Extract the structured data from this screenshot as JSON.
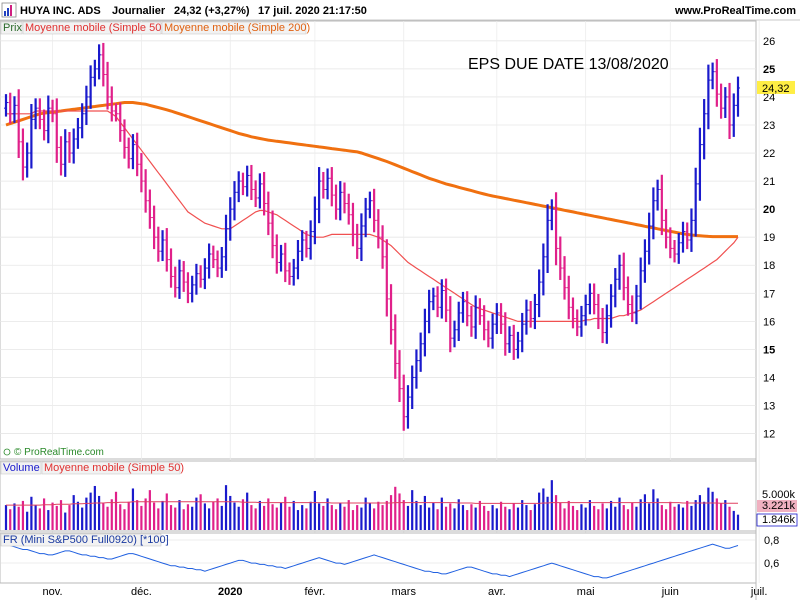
{
  "header": {
    "instrument": "HUYA INC. ADS",
    "period": "Journalier",
    "quote": "24,32 (+3,27%)",
    "datetime": "17 juil. 2020 21:17:50",
    "site": "www.ProRealTime.com"
  },
  "legend": {
    "price": "Prix",
    "ma50": "Moyenne mobile (Simple 50)",
    "ma200": "Moyenne mobile (Simple 200)"
  },
  "annotation": "EPS DUE DATE 13/08/2020",
  "watermark": "© ProRealTime.com",
  "last_price_label": "24,32",
  "colors": {
    "up": "#1a1acc",
    "down": "#e0208a",
    "ma50": "#f05050",
    "ma200": "#f07010",
    "fr_line": "#2060e0",
    "last_price_bg": "#ffee44",
    "volume_ma_bg": "#f0b0c0"
  },
  "volume_panel": {
    "label": "Volume",
    "ma_label": "Moyenne mobile (Simple 50)",
    "axis_label": "5.000k",
    "ma_value": "3.221k",
    "last_value": "1.846k"
  },
  "fr_panel": {
    "label": "FR (Mini S&P500 Full0920) [*100]",
    "axis_labels": [
      "0,8",
      "0,6"
    ]
  },
  "chart_data": {
    "type": "ohlc",
    "ylim": [
      11.2,
      26.6
    ],
    "y_ticks": [
      "26",
      "25",
      "24",
      "23",
      "22",
      "21",
      "20",
      "19",
      "18",
      "17",
      "16",
      "15",
      "14",
      "13",
      "12"
    ],
    "x_labels": [
      "nov.",
      "déc.",
      "2020",
      "févr.",
      "mars",
      "avr.",
      "mai",
      "juin",
      "juil."
    ],
    "closes": [
      23.8,
      23.4,
      23.7,
      22.4,
      21.5,
      22.0,
      23.2,
      23.6,
      23.2,
      22.8,
      23.6,
      23.4,
      22.2,
      21.6,
      22.4,
      22.0,
      22.5,
      22.9,
      23.4,
      24.0,
      24.7,
      25.0,
      25.5,
      24.8,
      24.0,
      23.5,
      23.4,
      22.8,
      22.2,
      21.8,
      22.3,
      21.6,
      21.0,
      20.3,
      19.7,
      19.0,
      18.5,
      18.9,
      18.2,
      17.6,
      17.2,
      17.8,
      17.4,
      17.0,
      17.3,
      17.7,
      17.5,
      17.9,
      18.4,
      18.2,
      17.9,
      18.3,
      19.3,
      20.0,
      20.6,
      21.0,
      20.8,
      21.2,
      20.7,
      20.4,
      20.9,
      20.2,
      19.5,
      18.7,
      18.1,
      18.4,
      17.8,
      17.6,
      17.9,
      18.5,
      18.9,
      18.6,
      19.2,
      20.0,
      21.0,
      20.7,
      21.1,
      20.5,
      20.0,
      20.6,
      20.2,
      19.8,
      19.1,
      18.6,
      19.4,
      20.0,
      20.3,
      19.6,
      19.0,
      18.3,
      16.8,
      15.7,
      14.5,
      13.6,
      12.6,
      13.3,
      14.0,
      14.6,
      15.2,
      16.0,
      16.7,
      16.9,
      16.5,
      17.1,
      16.4,
      15.4,
      15.7,
      16.3,
      16.7,
      16.2,
      15.8,
      16.5,
      16.2,
      15.7,
      15.4,
      15.9,
      16.3,
      15.9,
      15.2,
      15.5,
      15.0,
      15.3,
      15.9,
      16.4,
      16.1,
      16.6,
      17.4,
      18.3,
      19.6,
      20.0,
      18.6,
      17.9,
      17.2,
      16.5,
      16.1,
      15.8,
      16.2,
      16.6,
      17.0,
      16.6,
      16.1,
      15.6,
      16.2,
      16.9,
      17.5,
      18.0,
      17.2,
      16.6,
      16.3,
      16.9,
      17.8,
      18.5,
      19.4,
      20.3,
      20.7,
      19.6,
      19.0,
      18.6,
      18.4,
      18.8,
      19.2,
      18.9,
      19.6,
      20.9,
      22.3,
      23.4,
      24.6,
      24.9,
      24.1,
      23.6,
      24.0,
      23.0,
      23.7,
      24.32
    ],
    "ma50": [
      23.4,
      23.4,
      23.4,
      23.4,
      23.4,
      23.4,
      23.4,
      23.5,
      23.5,
      23.5,
      23.5,
      23.5,
      23.5,
      23.5,
      23.5,
      23.5,
      23.5,
      23.5,
      23.5,
      23.5,
      23.5,
      23.5,
      23.5,
      23.5,
      23.5,
      23.4,
      23.3,
      23.1,
      22.9,
      22.7,
      22.5,
      22.3,
      22.1,
      21.9,
      21.7,
      21.5,
      21.3,
      21.1,
      20.9,
      20.7,
      20.5,
      20.3,
      20.1,
      19.9,
      19.8,
      19.7,
      19.6,
      19.5,
      19.45,
      19.4,
      19.35,
      19.3,
      19.3,
      19.3,
      19.4,
      19.5,
      19.6,
      19.7,
      19.8,
      19.9,
      19.95,
      19.95,
      19.9,
      19.85,
      19.8,
      19.7,
      19.6,
      19.5,
      19.4,
      19.3,
      19.2,
      19.1,
      19.05,
      19.0,
      19.0,
      19.0,
      19.05,
      19.1,
      19.1,
      19.1,
      19.1,
      19.1,
      19.1,
      19.1,
      19.1,
      19.1,
      19.1,
      19.05,
      19.0,
      18.9,
      18.8,
      18.7,
      18.55,
      18.4,
      18.25,
      18.1,
      18.0,
      17.9,
      17.8,
      17.7,
      17.6,
      17.5,
      17.4,
      17.3,
      17.2,
      17.1,
      17.0,
      16.9,
      16.8,
      16.7,
      16.6,
      16.5,
      16.45,
      16.4,
      16.35,
      16.3,
      16.25,
      16.2,
      16.15,
      16.1,
      16.05,
      16.0,
      16.0,
      16.0,
      16.0,
      16.0,
      16.0,
      16.0,
      16.0,
      16.0,
      16.0,
      16.0,
      16.0,
      16.0,
      16.0,
      16.0,
      16.0,
      16.05,
      16.05,
      16.1,
      16.1,
      16.1,
      16.1,
      16.1,
      16.15,
      16.2,
      16.2,
      16.25,
      16.3,
      16.35,
      16.4,
      16.5,
      16.6,
      16.7,
      16.8,
      16.9,
      17.0,
      17.1,
      17.2,
      17.3,
      17.4,
      17.5,
      17.6,
      17.7,
      17.8,
      17.9,
      18.0,
      18.1,
      18.2,
      18.35,
      18.5,
      18.65,
      18.8,
      19.0
    ],
    "ma200": [
      23.0,
      23.05,
      23.1,
      23.15,
      23.2,
      23.25,
      23.3,
      23.35,
      23.4,
      23.42,
      23.44,
      23.46,
      23.48,
      23.5,
      23.52,
      23.54,
      23.56,
      23.58,
      23.6,
      23.62,
      23.64,
      23.66,
      23.68,
      23.7,
      23.72,
      23.74,
      23.76,
      23.78,
      23.8,
      23.8,
      23.8,
      23.78,
      23.76,
      23.74,
      23.7,
      23.66,
      23.62,
      23.58,
      23.54,
      23.5,
      23.45,
      23.4,
      23.35,
      23.3,
      23.25,
      23.2,
      23.15,
      23.1,
      23.05,
      23.0,
      22.95,
      22.9,
      22.85,
      22.8,
      22.75,
      22.7,
      22.66,
      22.62,
      22.58,
      22.55,
      22.52,
      22.49,
      22.46,
      22.44,
      22.42,
      22.4,
      22.38,
      22.36,
      22.34,
      22.32,
      22.3,
      22.28,
      22.26,
      22.24,
      22.22,
      22.2,
      22.18,
      22.16,
      22.14,
      22.12,
      22.1,
      22.08,
      22.06,
      22.04,
      22.0,
      21.95,
      21.9,
      21.85,
      21.8,
      21.75,
      21.7,
      21.64,
      21.58,
      21.52,
      21.46,
      21.4,
      21.34,
      21.28,
      21.22,
      21.16,
      21.1,
      21.05,
      21.0,
      20.95,
      20.9,
      20.86,
      20.82,
      20.78,
      20.74,
      20.7,
      20.66,
      20.62,
      20.58,
      20.54,
      20.5,
      20.47,
      20.44,
      20.41,
      20.38,
      20.35,
      20.32,
      20.29,
      20.26,
      20.23,
      20.2,
      20.17,
      20.14,
      20.11,
      20.08,
      20.05,
      20.02,
      19.99,
      19.96,
      19.93,
      19.9,
      19.87,
      19.84,
      19.81,
      19.78,
      19.75,
      19.72,
      19.69,
      19.66,
      19.63,
      19.6,
      19.57,
      19.54,
      19.51,
      19.48,
      19.45,
      19.42,
      19.39,
      19.36,
      19.33,
      19.3,
      19.27,
      19.24,
      19.21,
      19.18,
      19.15,
      19.12,
      19.1,
      19.08,
      19.06,
      19.05,
      19.04,
      19.03,
      19.02,
      19.02,
      19.02,
      19.02,
      19.02,
      19.02,
      19.02
    ],
    "volume": [
      3.0,
      2.5,
      3.2,
      2.8,
      3.5,
      2.2,
      4.0,
      3.0,
      2.6,
      3.8,
      2.4,
      3.3,
      2.9,
      3.6,
      2.1,
      3.0,
      4.2,
      3.4,
      2.7,
      3.9,
      4.5,
      5.3,
      4.1,
      3.2,
      2.8,
      3.7,
      4.6,
      3.1,
      2.5,
      3.4,
      5.0,
      3.6,
      2.9,
      3.8,
      4.8,
      3.3,
      2.6,
      3.5,
      4.4,
      3.0,
      2.7,
      3.6,
      2.5,
      3.1,
      2.8,
      3.9,
      4.3,
      3.2,
      2.6,
      3.4,
      3.8,
      2.9,
      5.4,
      4.1,
      3.3,
      2.8,
      3.7,
      4.5,
      3.0,
      2.6,
      3.5,
      2.9,
      3.8,
      3.1,
      2.7,
      3.3,
      4.0,
      2.8,
      3.5,
      2.4,
      3.0,
      2.6,
      3.4,
      4.7,
      3.2,
      2.9,
      3.8,
      3.0,
      2.5,
      3.3,
      2.8,
      3.6,
      2.4,
      3.0,
      2.7,
      3.9,
      3.2,
      2.6,
      3.4,
      3.0,
      3.5,
      4.2,
      5.2,
      4.4,
      3.6,
      2.9,
      4.8,
      3.5,
      3.0,
      4.1,
      2.7,
      3.3,
      2.5,
      3.9,
      2.8,
      3.2,
      2.6,
      3.7,
      3.0,
      2.4,
      3.1,
      2.7,
      3.5,
      2.9,
      2.3,
      3.0,
      2.6,
      3.4,
      2.8,
      2.5,
      3.2,
      2.7,
      3.6,
      3.0,
      2.4,
      3.1,
      4.5,
      5.0,
      4.0,
      6.0,
      4.2,
      3.3,
      2.6,
      3.5,
      2.9,
      2.4,
      3.1,
      2.7,
      3.6,
      2.9,
      2.5,
      3.2,
      2.6,
      3.5,
      2.8,
      3.9,
      3.0,
      2.5,
      3.3,
      2.8,
      3.7,
      4.3,
      3.2,
      4.9,
      3.8,
      3.0,
      2.5,
      3.4,
      2.8,
      3.1,
      2.7,
      3.5,
      2.9,
      3.6,
      4.2,
      3.4,
      5.1,
      4.6,
      3.8,
      3.2,
      3.6,
      2.8,
      2.3,
      1.846
    ],
    "volume_ma": [
      3.0,
      3.0,
      3.0,
      3.0,
      3.0,
      3.0,
      3.0,
      3.0,
      3.0,
      3.05,
      3.05,
      3.05,
      3.1,
      3.1,
      3.1,
      3.1,
      3.15,
      3.15,
      3.15,
      3.2,
      3.2,
      3.25,
      3.25,
      3.25,
      3.3,
      3.3,
      3.3,
      3.35,
      3.35,
      3.35,
      3.4,
      3.4,
      3.4,
      3.4,
      3.4,
      3.4,
      3.4,
      3.4,
      3.4,
      3.4,
      3.4,
      3.4,
      3.4,
      3.4,
      3.4,
      3.4,
      3.4,
      3.4,
      3.4,
      3.4,
      3.4,
      3.4,
      3.4,
      3.4,
      3.4,
      3.4,
      3.35,
      3.35,
      3.35,
      3.35,
      3.3,
      3.3,
      3.3,
      3.3,
      3.3,
      3.3,
      3.3,
      3.3,
      3.3,
      3.3,
      3.3,
      3.3,
      3.3,
      3.3,
      3.3,
      3.3,
      3.3,
      3.25,
      3.25,
      3.25,
      3.25,
      3.25,
      3.25,
      3.25,
      3.25,
      3.25,
      3.25,
      3.25,
      3.25,
      3.25,
      3.25,
      3.25,
      3.3,
      3.3,
      3.3,
      3.3,
      3.3,
      3.3,
      3.3,
      3.3,
      3.3,
      3.3,
      3.3,
      3.3,
      3.3,
      3.3,
      3.3,
      3.25,
      3.25,
      3.25,
      3.25,
      3.2,
      3.2,
      3.2,
      3.2,
      3.2,
      3.2,
      3.2,
      3.2,
      3.2,
      3.2,
      3.2,
      3.2,
      3.2,
      3.2,
      3.2,
      3.2,
      3.25,
      3.25,
      3.3,
      3.3,
      3.3,
      3.3,
      3.3,
      3.3,
      3.3,
      3.3,
      3.3,
      3.3,
      3.3,
      3.3,
      3.3,
      3.3,
      3.3,
      3.3,
      3.3,
      3.3,
      3.3,
      3.3,
      3.3,
      3.3,
      3.3,
      3.3,
      3.3,
      3.3,
      3.3,
      3.3,
      3.3,
      3.3,
      3.3,
      3.25,
      3.25,
      3.25,
      3.25,
      3.25,
      3.25,
      3.25,
      3.25,
      3.25,
      3.221,
      3.221,
      3.221,
      3.221,
      3.221
    ],
    "volume_ylim": [
      0,
      6.5
    ],
    "fr": [
      0.8,
      0.79,
      0.78,
      0.77,
      0.76,
      0.76,
      0.75,
      0.74,
      0.73,
      0.73,
      0.72,
      0.72,
      0.73,
      0.74,
      0.75,
      0.75,
      0.74,
      0.73,
      0.72,
      0.72,
      0.71,
      0.71,
      0.7,
      0.7,
      0.69,
      0.69,
      0.7,
      0.71,
      0.72,
      0.73,
      0.73,
      0.72,
      0.71,
      0.7,
      0.69,
      0.68,
      0.67,
      0.66,
      0.65,
      0.64,
      0.64,
      0.63,
      0.63,
      0.62,
      0.62,
      0.61,
      0.61,
      0.6,
      0.61,
      0.62,
      0.63,
      0.64,
      0.65,
      0.66,
      0.67,
      0.68,
      0.68,
      0.67,
      0.66,
      0.66,
      0.65,
      0.65,
      0.64,
      0.64,
      0.63,
      0.63,
      0.62,
      0.63,
      0.64,
      0.65,
      0.66,
      0.67,
      0.68,
      0.69,
      0.7,
      0.69,
      0.68,
      0.67,
      0.66,
      0.66,
      0.65,
      0.66,
      0.67,
      0.68,
      0.69,
      0.7,
      0.71,
      0.72,
      0.71,
      0.7,
      0.69,
      0.68,
      0.67,
      0.66,
      0.65,
      0.64,
      0.63,
      0.62,
      0.61,
      0.6,
      0.6,
      0.59,
      0.59,
      0.58,
      0.58,
      0.59,
      0.6,
      0.61,
      0.62,
      0.63,
      0.63,
      0.62,
      0.61,
      0.6,
      0.59,
      0.58,
      0.58,
      0.57,
      0.57,
      0.56,
      0.57,
      0.58,
      0.59,
      0.6,
      0.61,
      0.62,
      0.63,
      0.64,
      0.65,
      0.66,
      0.65,
      0.64,
      0.63,
      0.62,
      0.61,
      0.6,
      0.59,
      0.58,
      0.57,
      0.56,
      0.56,
      0.55,
      0.55,
      0.56,
      0.57,
      0.58,
      0.59,
      0.6,
      0.61,
      0.62,
      0.63,
      0.64,
      0.65,
      0.66,
      0.67,
      0.68,
      0.69,
      0.7,
      0.71,
      0.72,
      0.73,
      0.74,
      0.75,
      0.76,
      0.77,
      0.78,
      0.79,
      0.8,
      0.79,
      0.78,
      0.77,
      0.77,
      0.78,
      0.79
    ],
    "fr_ylim": [
      0.52,
      0.86
    ]
  }
}
